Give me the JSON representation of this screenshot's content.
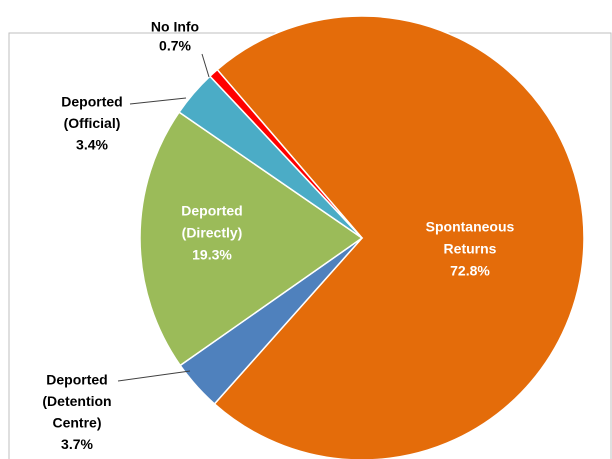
{
  "chart_data": {
    "type": "pie",
    "categories": [
      [
        "Spontaneous",
        "Returns"
      ],
      [
        "Deported",
        "(Detention",
        "Centre)"
      ],
      [
        "Deported",
        "(Directly)"
      ],
      [
        "Deported",
        "(Official)"
      ],
      [
        "No Info"
      ]
    ],
    "values": [
      72.8,
      3.7,
      19.3,
      3.4,
      0.7
    ],
    "value_labels": [
      "72.8%",
      "3.7%",
      "19.3%",
      "3.4%",
      "0.7%"
    ],
    "colors": [
      "#e46c0a",
      "#4f81bd",
      "#9bbb59",
      "#4bacc6",
      "#ff0000"
    ]
  }
}
